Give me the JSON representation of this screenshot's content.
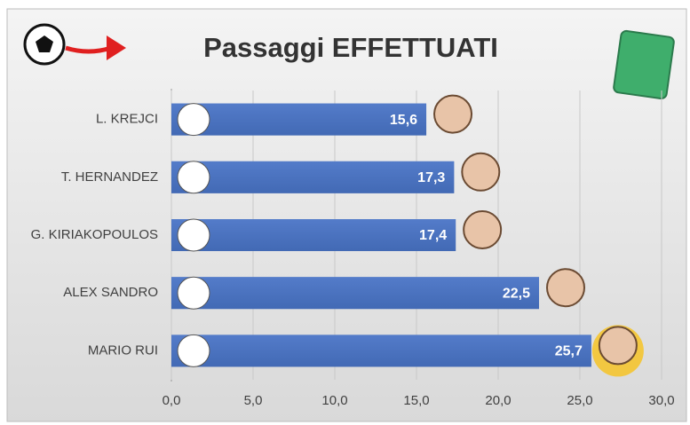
{
  "chart_data": {
    "type": "hbar",
    "title": "Passaggi EFFETTUATI",
    "categories": [
      "L. KREJCI",
      "T. HERNANDEZ",
      "G. KIRIAKOPOULOS",
      "ALEX SANDRO",
      "MARIO RUI"
    ],
    "values": [
      15.6,
      17.3,
      17.4,
      22.5,
      25.7
    ],
    "value_labels": [
      "15,6",
      "17,3",
      "17,4",
      "22,5",
      "25,7"
    ],
    "color": "#4a72c0",
    "xlim": [
      0,
      30
    ],
    "xticks": [
      {
        "value": 0,
        "label": "0,0"
      },
      {
        "value": 5,
        "label": "5,0"
      },
      {
        "value": 10,
        "label": "10,0"
      },
      {
        "value": 15,
        "label": "15,0"
      },
      {
        "value": 20,
        "label": "20,0"
      },
      {
        "value": 25,
        "label": "25,0"
      },
      {
        "value": 30,
        "label": "30,0"
      }
    ],
    "grid": true
  }
}
